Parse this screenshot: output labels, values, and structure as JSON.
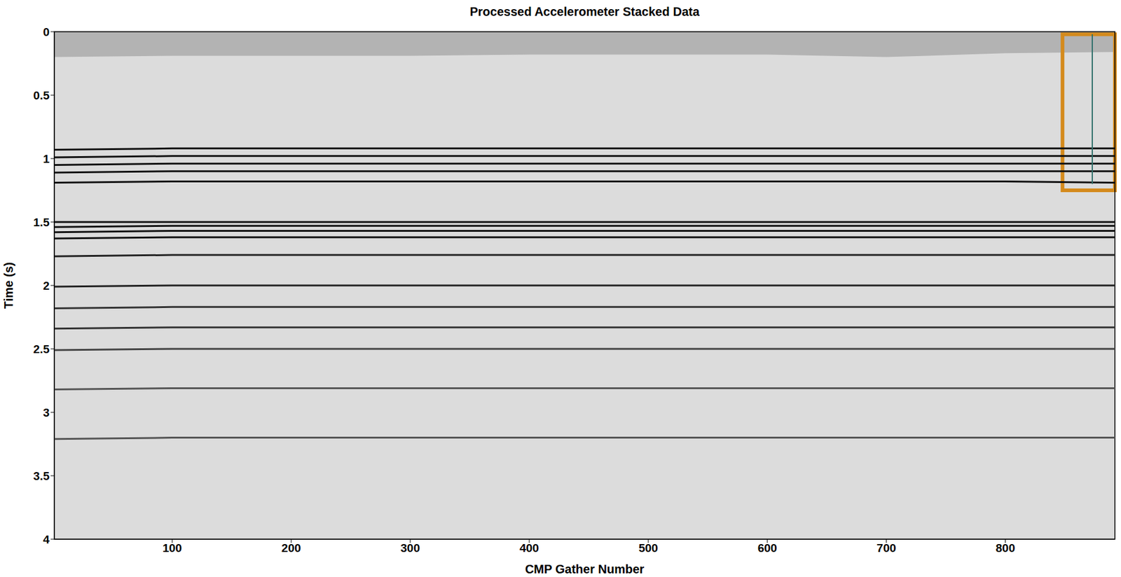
{
  "chart_data": {
    "type": "line",
    "title": "Processed Accelerometer Stacked Data",
    "x_label": "CMP Gather Number",
    "y_label": "Time (s)",
    "xlim": [
      1,
      892
    ],
    "xticks": [
      100,
      200,
      300,
      400,
      500,
      600,
      700,
      800
    ],
    "ylim": [
      0,
      4
    ],
    "yticks": [
      0,
      0.5,
      1,
      1.5,
      2,
      2.5,
      3,
      3.5,
      4
    ],
    "grid": false,
    "x": [
      1,
      100,
      200,
      300,
      400,
      500,
      600,
      700,
      800,
      892
    ],
    "mute": {
      "color": "#b3b3b3",
      "values": [
        0.2,
        0.19,
        0.19,
        0.19,
        0.18,
        0.18,
        0.18,
        0.2,
        0.17,
        0.16
      ]
    },
    "series": [
      {
        "color": "#111111",
        "values": [
          0.93,
          0.92,
          0.92,
          0.92,
          0.92,
          0.92,
          0.92,
          0.92,
          0.92,
          0.92
        ]
      },
      {
        "color": "#111111",
        "values": [
          0.99,
          0.98,
          0.98,
          0.98,
          0.98,
          0.98,
          0.98,
          0.98,
          0.98,
          0.98
        ]
      },
      {
        "color": "#111111",
        "values": [
          1.05,
          1.04,
          1.04,
          1.04,
          1.04,
          1.04,
          1.04,
          1.04,
          1.04,
          1.04
        ]
      },
      {
        "color": "#111111",
        "values": [
          1.11,
          1.1,
          1.1,
          1.1,
          1.1,
          1.1,
          1.1,
          1.1,
          1.1,
          1.1
        ]
      },
      {
        "color": "#111111",
        "values": [
          1.19,
          1.18,
          1.18,
          1.18,
          1.18,
          1.18,
          1.18,
          1.18,
          1.18,
          1.19
        ]
      },
      {
        "color": "#111111",
        "values": [
          1.5,
          1.5,
          1.5,
          1.5,
          1.5,
          1.5,
          1.5,
          1.5,
          1.5,
          1.5
        ]
      },
      {
        "color": "#111111",
        "values": [
          1.54,
          1.53,
          1.53,
          1.53,
          1.53,
          1.53,
          1.53,
          1.53,
          1.53,
          1.53
        ]
      },
      {
        "color": "#111111",
        "values": [
          1.58,
          1.57,
          1.57,
          1.57,
          1.57,
          1.57,
          1.57,
          1.57,
          1.57,
          1.57
        ]
      },
      {
        "color": "#111111",
        "values": [
          1.63,
          1.62,
          1.62,
          1.62,
          1.62,
          1.62,
          1.62,
          1.62,
          1.62,
          1.62
        ]
      },
      {
        "color": "#222222",
        "values": [
          1.77,
          1.76,
          1.76,
          1.76,
          1.76,
          1.76,
          1.76,
          1.76,
          1.76,
          1.76
        ]
      },
      {
        "color": "#222222",
        "values": [
          2.01,
          2.0,
          2.0,
          2.0,
          2.0,
          2.0,
          2.0,
          2.0,
          2.0,
          2.0
        ]
      },
      {
        "color": "#333333",
        "values": [
          2.18,
          2.17,
          2.17,
          2.17,
          2.17,
          2.17,
          2.17,
          2.17,
          2.17,
          2.17
        ]
      },
      {
        "color": "#333333",
        "values": [
          2.34,
          2.33,
          2.33,
          2.33,
          2.33,
          2.33,
          2.33,
          2.33,
          2.33,
          2.33
        ]
      },
      {
        "color": "#444444",
        "values": [
          2.51,
          2.5,
          2.5,
          2.5,
          2.5,
          2.5,
          2.5,
          2.5,
          2.5,
          2.5
        ]
      },
      {
        "color": "#555555",
        "values": [
          2.82,
          2.81,
          2.81,
          2.81,
          2.81,
          2.81,
          2.81,
          2.81,
          2.81,
          2.81
        ]
      },
      {
        "color": "#555555",
        "values": [
          3.21,
          3.2,
          3.2,
          3.2,
          3.2,
          3.2,
          3.2,
          3.2,
          3.2,
          3.2
        ]
      }
    ],
    "annotations": [
      {
        "type": "rectangle",
        "x": [
          848,
          892
        ],
        "y": [
          0.02,
          1.25
        ],
        "color": "#d48a1c"
      },
      {
        "type": "line",
        "x": 873,
        "y": [
          0.02,
          1.2
        ],
        "color": "#2f6f6a"
      }
    ]
  }
}
